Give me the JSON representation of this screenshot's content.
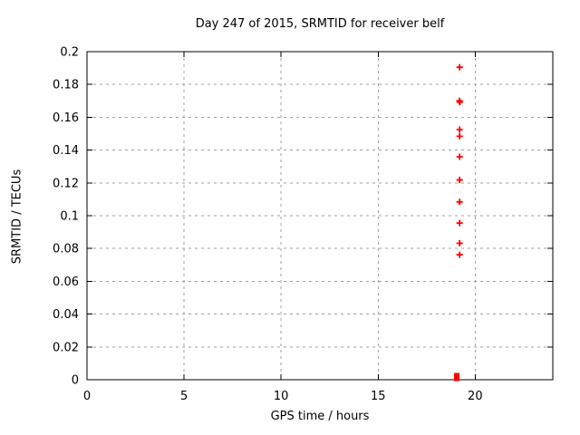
{
  "chart_data": {
    "type": "scatter",
    "title": "Day 247 of 2015, SRMTID for receiver belf",
    "xlabel": "GPS time / hours",
    "ylabel": "SRMTID / TECUs",
    "xlim": [
      0,
      24
    ],
    "ylim": [
      0,
      0.2
    ],
    "xticks": [
      0,
      5,
      10,
      15,
      20
    ],
    "xtick_labels": [
      "0",
      "5",
      "10",
      "15",
      "20"
    ],
    "yticks": [
      0,
      0.02,
      0.04,
      0.06,
      0.08,
      0.1,
      0.12,
      0.14,
      0.16,
      0.18,
      0.2
    ],
    "ytick_labels": [
      "0",
      "0.02",
      "0.04",
      "0.06",
      "0.08",
      "0.1",
      "0.12",
      "0.14",
      "0.16",
      "0.18",
      "0.2"
    ],
    "grid": true,
    "grid_style": "dashed",
    "legend": "none",
    "colors": {
      "marker": "#ff0000",
      "grid": "#a0a0a0",
      "border": "#000000",
      "text": "#000000",
      "background": "#ffffff"
    },
    "series": [
      {
        "name": "srmtid-points",
        "marker": "plus",
        "points": [
          [
            19.2,
            0.1905
          ],
          [
            19.19,
            0.17
          ],
          [
            19.21,
            0.1692
          ],
          [
            19.2,
            0.1525
          ],
          [
            19.2,
            0.1484
          ],
          [
            19.2,
            0.1359
          ],
          [
            19.2,
            0.1218
          ],
          [
            19.2,
            0.1084
          ],
          [
            19.2,
            0.0955
          ],
          [
            19.2,
            0.0832
          ],
          [
            19.2,
            0.0762
          ]
        ]
      },
      {
        "name": "zero-cluster",
        "marker": "filled-square",
        "points": [
          [
            19.05,
            0
          ]
        ]
      }
    ]
  }
}
